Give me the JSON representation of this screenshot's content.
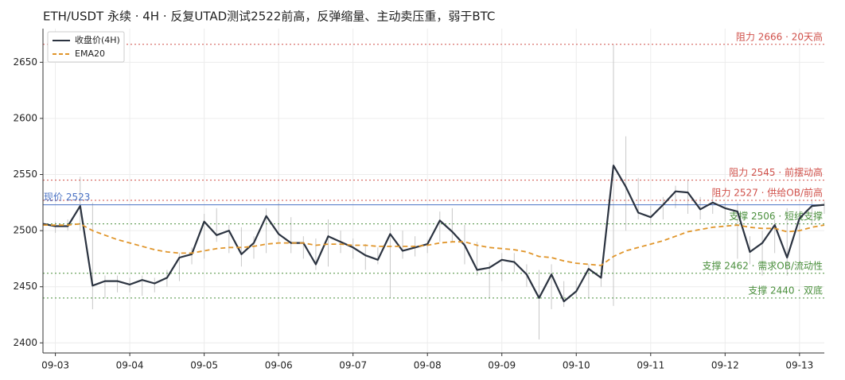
{
  "chart_data": {
    "type": "line",
    "title": "ETH/USDT 永续 · 4H · 反复UTAD测试2522前高，反弹缩量、主动卖压重，弱于BTC",
    "categories": [
      null,
      "09-03",
      null,
      null,
      null,
      null,
      null,
      "09-04",
      null,
      null,
      null,
      null,
      null,
      "09-05",
      null,
      null,
      null,
      null,
      null,
      "09-06",
      null,
      null,
      null,
      null,
      null,
      "09-07",
      null,
      null,
      null,
      null,
      null,
      "09-08",
      null,
      null,
      null,
      null,
      null,
      "09-09",
      null,
      null,
      null,
      null,
      null,
      "09-10",
      null,
      null,
      null,
      null,
      null,
      "09-11",
      null,
      null,
      null,
      null,
      null,
      "09-12",
      null,
      null,
      null,
      null,
      null,
      "09-13",
      null,
      null
    ],
    "series": [
      {
        "name": "收盘价(4H)",
        "color": "#2b3340",
        "dash": false,
        "values": [
          2506,
          2504,
          2504,
          2522,
          2451,
          2455,
          2455,
          2452,
          2456,
          2453,
          2458,
          2476,
          2479,
          2508,
          2496,
          2500,
          2479,
          2489,
          2513,
          2497,
          2489,
          2489,
          2470,
          2495,
          2490,
          2485,
          2478,
          2474,
          2497,
          2482,
          2485,
          2488,
          2509,
          2499,
          2487,
          2465,
          2467,
          2474,
          2472,
          2461,
          2440,
          2461,
          2437,
          2446,
          2466,
          2458,
          2558,
          2539,
          2516,
          2512,
          2523,
          2535,
          2534,
          2519,
          2525,
          2520,
          2517,
          2481,
          2489,
          2505,
          2476,
          2511,
          2522,
          2523
        ]
      },
      {
        "name": "EMA20",
        "color": "#e0952a",
        "dash": true,
        "values": [
          2505,
          2505,
          2505,
          2506,
          2500,
          2496,
          2492,
          2489,
          2486,
          2483,
          2481,
          2480,
          2480,
          2482,
          2484,
          2485,
          2485,
          2486,
          2488,
          2489,
          2489,
          2489,
          2487,
          2488,
          2488,
          2487,
          2487,
          2486,
          2486,
          2486,
          2486,
          2487,
          2489,
          2490,
          2490,
          2487,
          2485,
          2484,
          2483,
          2481,
          2477,
          2476,
          2473,
          2471,
          2470,
          2469,
          2477,
          2482,
          2485,
          2488,
          2491,
          2495,
          2499,
          2501,
          2503,
          2504,
          2505,
          2503,
          2502,
          2502,
          2499,
          2500,
          2503,
          2505
        ]
      }
    ],
    "high": [
      2510,
      2508,
      2510,
      2548,
      2525,
      2460,
      2460,
      2458,
      2460,
      2458,
      2465,
      2480,
      2485,
      2515,
      2520,
      2505,
      2503,
      2495,
      2520,
      2525,
      2512,
      2495,
      2493,
      2510,
      2500,
      2493,
      2488,
      2485,
      2505,
      2500,
      2495,
      2492,
      2517,
      2520,
      2505,
      2490,
      2472,
      2480,
      2480,
      2470,
      2465,
      2470,
      2455,
      2455,
      2470,
      2470,
      2666,
      2584,
      2547,
      2522,
      2530,
      2540,
      2545,
      2530,
      2530,
      2525,
      2525,
      2495,
      2500,
      2510,
      2520,
      2515,
      2528,
      2526
    ],
    "low": [
      2500,
      2498,
      2500,
      2500,
      2430,
      2440,
      2445,
      2445,
      2442,
      2445,
      2450,
      2455,
      2470,
      2475,
      2490,
      2480,
      2468,
      2475,
      2480,
      2490,
      2480,
      2475,
      2465,
      2468,
      2480,
      2475,
      2465,
      2470,
      2440,
      2475,
      2477,
      2480,
      2490,
      2490,
      2470,
      2460,
      2440,
      2455,
      2463,
      2450,
      2403,
      2430,
      2432,
      2440,
      2440,
      2450,
      2433,
      2500,
      2510,
      2505,
      2510,
      2520,
      2515,
      2510,
      2515,
      2508,
      2475,
      2470,
      2460,
      2480,
      2460,
      2465,
      2505,
      2515
    ],
    "wick_color": "#c8c8c8",
    "ylim": [
      2391,
      2680
    ],
    "yticks": [
      2400,
      2450,
      2500,
      2550,
      2600,
      2650
    ],
    "grid": true,
    "legend": "upper left",
    "ref_lines": [
      {
        "value": 2666,
        "label": "阻力 2666 · 20天高",
        "color": "#d0504a",
        "style": "dotted",
        "side": "right"
      },
      {
        "value": 2545,
        "label": "阻力 2545 · 前摆动高",
        "color": "#d0504a",
        "style": "dotted",
        "side": "right"
      },
      {
        "value": 2527,
        "label": "阻力 2527 · 供给OB/前高",
        "color": "#d0504a",
        "style": "dotted",
        "side": "right"
      },
      {
        "value": 2523,
        "label": "现价 2523",
        "color": "#4a72c4",
        "style": "solid",
        "side": "left"
      },
      {
        "value": 2506,
        "label": "支撑 2506 · 短线支撑",
        "color": "#4a8f3c",
        "style": "dotted",
        "side": "right"
      },
      {
        "value": 2462,
        "label": "支撑 2462 · 需求OB/流动性",
        "color": "#4a8f3c",
        "style": "dotted",
        "side": "right"
      },
      {
        "value": 2440,
        "label": "支撑 2440 · 双底",
        "color": "#4a8f3c",
        "style": "dotted",
        "side": "right"
      }
    ]
  }
}
